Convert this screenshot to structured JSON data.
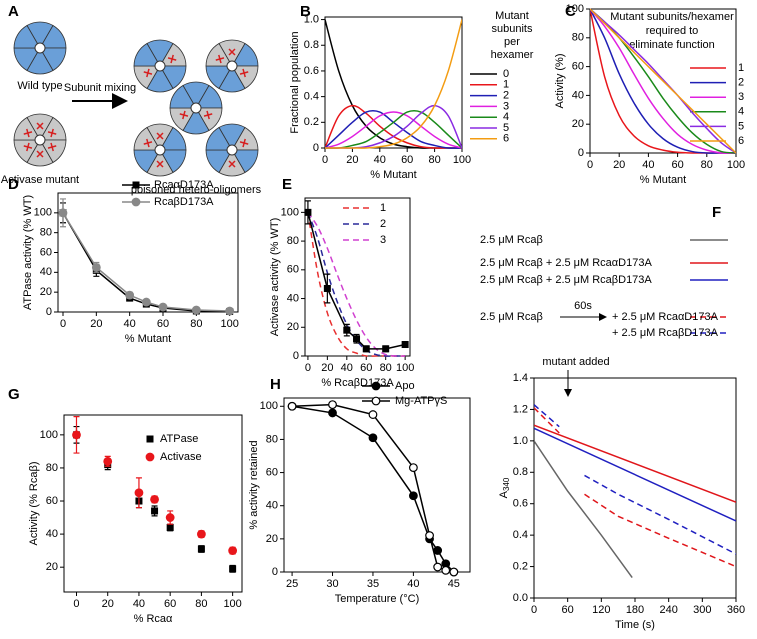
{
  "diagram": {
    "panel": "A",
    "wild_type": "Wild type",
    "mixing": "Subunit mixing",
    "mutant": "Activase mutant",
    "products": "poisoned hetero-oligomers"
  },
  "chart_data": [
    {
      "type": "line",
      "panel": "B",
      "x_label": "% Mutant",
      "y_label": "Fractional population",
      "legend_title": [
        "Mutant",
        "subunits",
        "per",
        "hexamer"
      ],
      "x": [
        0,
        10,
        20,
        30,
        40,
        50,
        60,
        70,
        80,
        90,
        100
      ],
      "xlim": [
        0,
        100
      ],
      "xticks": [
        0,
        20,
        40,
        60,
        80,
        100
      ],
      "ylim": [
        0,
        1.02
      ],
      "yticks": [
        0,
        0.2,
        0.4,
        0.6,
        0.8,
        {
          "value": 1,
          "label": "1.0"
        }
      ],
      "series": [
        {
          "name": "0",
          "color": "#000000",
          "values": [
            1.0,
            0.6,
            0.33,
            0.17,
            0.08,
            0.03,
            0.01,
            0,
            0,
            0,
            0
          ]
        },
        {
          "name": "1",
          "color": "#e8161b",
          "values": [
            0,
            0.25,
            0.33,
            0.27,
            0.17,
            0.09,
            0.04,
            0.01,
            0,
            0,
            0
          ]
        },
        {
          "name": "2",
          "color": "#1f1fb4",
          "values": [
            0,
            0.1,
            0.2,
            0.28,
            0.28,
            0.2,
            0.12,
            0.05,
            0.02,
            0,
            0
          ]
        },
        {
          "name": "3",
          "color": "#e020e0",
          "values": [
            0,
            0.03,
            0.09,
            0.17,
            0.25,
            0.28,
            0.25,
            0.17,
            0.09,
            0.03,
            0
          ]
        },
        {
          "name": "4",
          "color": "#1a8a1a",
          "values": [
            0,
            0,
            0.02,
            0.05,
            0.12,
            0.2,
            0.28,
            0.28,
            0.2,
            0.1,
            0
          ]
        },
        {
          "name": "5",
          "color": "#8a2be2",
          "values": [
            0,
            0,
            0,
            0.01,
            0.04,
            0.09,
            0.17,
            0.27,
            0.33,
            0.25,
            0
          ]
        },
        {
          "name": "6",
          "color": "#f39c12",
          "values": [
            0,
            0,
            0,
            0,
            0.01,
            0.03,
            0.08,
            0.17,
            0.33,
            0.6,
            1.0
          ]
        }
      ]
    },
    {
      "type": "line",
      "panel": "C",
      "x_label": "% Mutant",
      "y_label": "Activity (%)",
      "legend_title": [
        "Mutant subunits/hexamer",
        "required to",
        "eliminate function"
      ],
      "x": [
        0,
        10,
        20,
        30,
        40,
        50,
        60,
        70,
        80,
        90,
        100
      ],
      "xlim": [
        0,
        100
      ],
      "xticks": [
        0,
        20,
        40,
        60,
        80,
        100
      ],
      "ylim": [
        0,
        100
      ],
      "yticks": [
        0,
        20,
        40,
        60,
        80,
        100
      ],
      "series": [
        {
          "name": "1",
          "color": "#e8161b",
          "values": [
            100,
            53,
            26,
            12,
            5,
            2,
            0.5,
            0,
            0,
            0,
            0
          ]
        },
        {
          "name": "2",
          "color": "#1f1fb4",
          "values": [
            100,
            80,
            55,
            35,
            20,
            10,
            4,
            1,
            0,
            0,
            0
          ]
        },
        {
          "name": "3",
          "color": "#e020e0",
          "values": [
            100,
            88,
            73,
            55,
            38,
            24,
            13,
            6,
            2,
            0,
            0
          ]
        },
        {
          "name": "4",
          "color": "#1a8a1a",
          "values": [
            100,
            91,
            80,
            67,
            53,
            38,
            25,
            14,
            6,
            1,
            0
          ]
        },
        {
          "name": "5",
          "color": "#8a2be2",
          "values": [
            100,
            91,
            82,
            72,
            62,
            51,
            40,
            28,
            17,
            7,
            0
          ]
        },
        {
          "name": "6",
          "color": "#f39c12",
          "values": [
            100,
            90,
            80,
            70,
            60,
            50,
            40,
            30,
            20,
            10,
            0
          ]
        }
      ]
    },
    {
      "type": "line",
      "panel": "D",
      "x_label": "% Mutant",
      "y_label": "ATPase activity (% WT)",
      "x": [
        0,
        20,
        40,
        50,
        60,
        80,
        100
      ],
      "xlim": [
        -3,
        105
      ],
      "xticks": [
        0,
        20,
        40,
        60,
        80,
        100
      ],
      "ylim": [
        0,
        120
      ],
      "yticks": [
        0,
        20,
        40,
        60,
        80,
        100
      ],
      "series": [
        {
          "name": "RcaαD173A",
          "color": "#000000",
          "marker": "square",
          "values": [
            100,
            42,
            14,
            8,
            4,
            1,
            0.5
          ],
          "errors": [
            10,
            6,
            2,
            1,
            1,
            1,
            1
          ]
        },
        {
          "name": "RcaβD173A",
          "color": "#888888",
          "marker": "circle",
          "values": [
            100,
            45,
            17,
            10,
            5,
            2,
            1
          ],
          "errors": [
            14,
            5,
            3,
            2,
            1,
            1,
            1
          ]
        }
      ]
    },
    {
      "type": "line",
      "panel": "E",
      "x_label": "% RcaβD173A",
      "y_label": "Activase activity (% WT)",
      "xlim": [
        -3,
        105
      ],
      "xticks": [
        0,
        20,
        40,
        60,
        80,
        100
      ],
      "ylim": [
        0,
        110
      ],
      "yticks": [
        0,
        20,
        40,
        60,
        80,
        100
      ],
      "series": [
        {
          "name": "1",
          "color": "#e83030",
          "dashed": true,
          "x": [
            0,
            10,
            20,
            30,
            40,
            50,
            60,
            70,
            80,
            90,
            100
          ],
          "values": [
            100,
            58,
            30,
            14,
            5,
            2,
            0,
            0,
            0,
            0,
            0
          ]
        },
        {
          "name": "2",
          "color": "#2a2a9a",
          "dashed": true,
          "x": [
            0,
            10,
            20,
            30,
            40,
            50,
            60,
            70,
            80,
            90,
            100
          ],
          "values": [
            100,
            82,
            58,
            38,
            22,
            11,
            4,
            1,
            0,
            0,
            0
          ]
        },
        {
          "name": "3",
          "color": "#d040d0",
          "dashed": true,
          "x": [
            0,
            10,
            20,
            30,
            40,
            50,
            60,
            70,
            80,
            90,
            100
          ],
          "values": [
            100,
            90,
            75,
            57,
            40,
            25,
            13,
            5,
            1,
            0,
            0
          ]
        },
        {
          "color": "#000000",
          "marker": "square",
          "x": [
            0,
            20,
            40,
            50,
            60,
            80,
            100
          ],
          "values": [
            100,
            47,
            18,
            12,
            5,
            5,
            8
          ],
          "errors": [
            8,
            10,
            4,
            3,
            2,
            2,
            2
          ]
        }
      ]
    },
    {
      "type": "line",
      "panel": "F",
      "x_label": "Time (s)",
      "y_label": "A",
      "y_label_sub": "340",
      "annotation": "mutant added",
      "legend_prefix": "2.5 μM Rcaβ",
      "legend_delay": "60s",
      "xlim": [
        0,
        360
      ],
      "xticks": [
        0,
        60,
        120,
        180,
        240,
        300,
        360
      ],
      "ylim": [
        0,
        1.4
      ],
      "yticks": [
        {
          "value": 0,
          "label": "0.0"
        },
        0.2,
        0.4,
        0.6,
        0.8,
        {
          "value": 1,
          "label": "1.0"
        },
        1.2,
        1.4
      ],
      "series": [
        {
          "name": "2.5 μM Rcaβ",
          "color": "#666666",
          "x": [
            0,
            60,
            120,
            175
          ],
          "values": [
            1.0,
            0.68,
            0.4,
            0.13
          ]
        },
        {
          "name": "2.5 μM Rcaβ + 2.5 μM RcaαD173A",
          "color": "#e0161b",
          "x": [
            0,
            360
          ],
          "values": [
            1.1,
            0.61
          ]
        },
        {
          "name": "2.5 μM Rcaβ + 2.5 μM RcaβD173A",
          "color": "#2020c0",
          "x": [
            0,
            360
          ],
          "values": [
            1.08,
            0.49
          ]
        },
        {
          "name": "+ 2.5 μM RcaαD173A",
          "color": "#e0161b",
          "dashed": true,
          "x": [
            0,
            45,
            60,
            90,
            150,
            240,
            360
          ],
          "values": [
            1.21,
            1.05,
            null,
            0.66,
            0.52,
            0.38,
            0.2
          ]
        },
        {
          "name": "+ 2.5 μM RcaβD173A",
          "color": "#2020c0",
          "dashed": true,
          "x": [
            0,
            45,
            60,
            90,
            150,
            240,
            360
          ],
          "values": [
            1.23,
            1.09,
            null,
            0.78,
            0.66,
            0.5,
            0.28
          ]
        }
      ]
    },
    {
      "type": "scatter",
      "panel": "G",
      "x_label": "% Rcaα",
      "y_label": "Activity (% Rcaβ)",
      "x": [
        0,
        20,
        40,
        50,
        60,
        80,
        100
      ],
      "xlim": [
        -8,
        106
      ],
      "xticks": [
        0,
        20,
        40,
        60,
        80,
        100
      ],
      "ylim": [
        5,
        112
      ],
      "yticks": [
        20,
        40,
        60,
        80,
        100
      ],
      "series": [
        {
          "name": "ATPase",
          "color": "#000000",
          "marker": "square",
          "values": [
            100,
            82,
            60,
            54,
            44,
            31,
            19
          ],
          "errors": [
            5,
            3,
            4,
            3,
            2,
            2,
            2
          ]
        },
        {
          "name": "Activase",
          "color": "#e8161b",
          "marker": "circle",
          "values": [
            100,
            84,
            65,
            61,
            50,
            40,
            30
          ],
          "errors": [
            11,
            3,
            9,
            2,
            4,
            2,
            2
          ]
        }
      ]
    },
    {
      "type": "line",
      "panel": "H",
      "x_label": "Temperature (°C)",
      "y_label": "% activity retained",
      "x": [
        25,
        30,
        35,
        40,
        42,
        43,
        44,
        45
      ],
      "xlim": [
        24,
        47
      ],
      "xticks": [
        25,
        30,
        35,
        40,
        45
      ],
      "ylim": [
        0,
        105
      ],
      "yticks": [
        0,
        20,
        40,
        60,
        80,
        100
      ],
      "series": [
        {
          "name": "Apo",
          "color": "#000000",
          "marker": "circle",
          "values": [
            100,
            96,
            81,
            46,
            20,
            13,
            5,
            0
          ]
        },
        {
          "name": "Mg-ATPγS",
          "color": "#000000",
          "marker": "open-circle",
          "values": [
            100,
            101,
            95,
            63,
            22,
            3,
            1,
            0
          ]
        }
      ]
    }
  ]
}
